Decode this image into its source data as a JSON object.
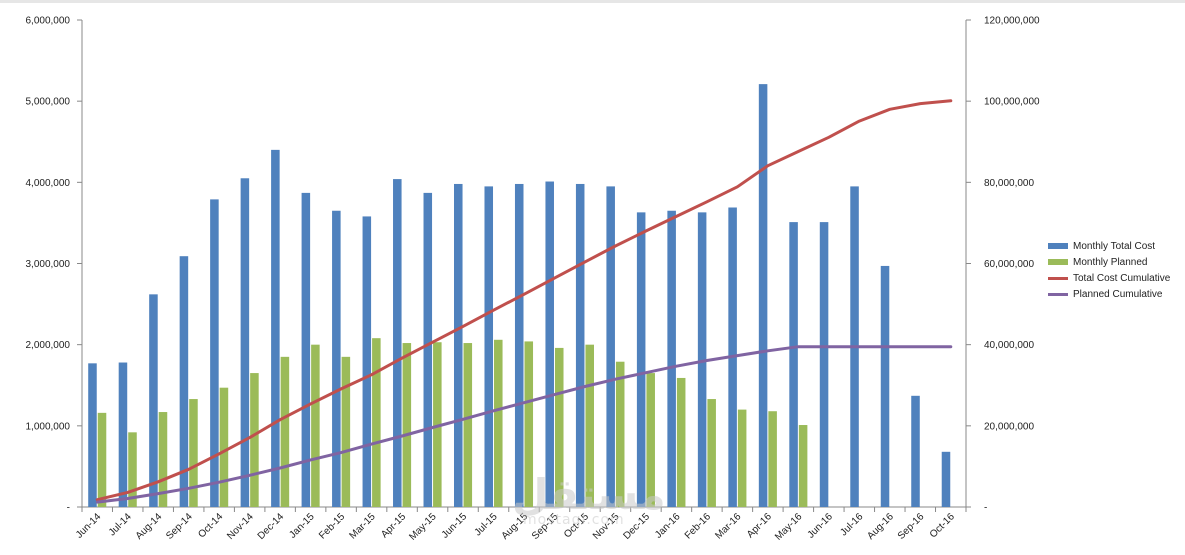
{
  "chart_data": {
    "type": "bar",
    "categories": [
      "Jun-14",
      "Jul-14",
      "Aug-14",
      "Sep-14",
      "Oct-14",
      "Nov-14",
      "Dec-14",
      "Jan-15",
      "Feb-15",
      "Mar-15",
      "Apr-15",
      "May-15",
      "Jun-15",
      "Jul-15",
      "Aug-15",
      "Sep-15",
      "Oct-15",
      "Nov-15",
      "Dec-15",
      "Jan-16",
      "Feb-16",
      "Mar-16",
      "Apr-16",
      "May-16",
      "Jun-16",
      "Jul-16",
      "Aug-16",
      "Sep-16",
      "Oct-16"
    ],
    "series": [
      {
        "name": "Monthly Total Cost",
        "type": "bar",
        "axis": "left",
        "color": "#4F81BD",
        "values": [
          1770000,
          1780000,
          2620000,
          3090000,
          3790000,
          4050000,
          4400000,
          3870000,
          3650000,
          3580000,
          4040000,
          3870000,
          3980000,
          3950000,
          3980000,
          4010000,
          3980000,
          3950000,
          3630000,
          3650000,
          3630000,
          3690000,
          5210000,
          3510000,
          3510000,
          3950000,
          2970000,
          1370000,
          680000
        ]
      },
      {
        "name": "Monthly Planned",
        "type": "bar",
        "axis": "left",
        "color": "#9BBB59",
        "values": [
          1160000,
          920000,
          1170000,
          1330000,
          1470000,
          1650000,
          1850000,
          2000000,
          1850000,
          2080000,
          2020000,
          2030000,
          2020000,
          2060000,
          2040000,
          1960000,
          2000000,
          1790000,
          1650000,
          1590000,
          1330000,
          1200000,
          1180000,
          1010000,
          null,
          null,
          null,
          null,
          null
        ]
      },
      {
        "name": "Total Cost Cumulative",
        "type": "line",
        "axis": "right",
        "color": "#C0504D",
        "values": [
          1800000,
          3600000,
          6200000,
          9300000,
          13100000,
          17100000,
          21500000,
          25400000,
          29100000,
          32600000,
          36700000,
          40600000,
          44500000,
          48500000,
          52400000,
          56400000,
          60400000,
          64300000,
          68000000,
          71600000,
          75200000,
          78900000,
          84100000,
          87600000,
          91100000,
          95100000,
          98000000,
          99400000,
          100100000
        ]
      },
      {
        "name": "Planned Cumulative",
        "type": "line",
        "axis": "right",
        "color": "#8064A2",
        "values": [
          1200000,
          2100000,
          3300000,
          4600000,
          6100000,
          7800000,
          9600000,
          11600000,
          13400000,
          15500000,
          17500000,
          19600000,
          21600000,
          23700000,
          25700000,
          27700000,
          29700000,
          31500000,
          33100000,
          34700000,
          36100000,
          37300000,
          38500000,
          39500000,
          39500000,
          39500000,
          39500000,
          39500000,
          39500000
        ]
      }
    ],
    "y_left": {
      "min": 0,
      "max": 6000000,
      "ticks": [
        0,
        1000000,
        2000000,
        3000000,
        4000000,
        5000000,
        6000000
      ],
      "tick_labels": [
        "-",
        "1,000,000",
        "2,000,000",
        "3,000,000",
        "4,000,000",
        "5,000,000",
        "6,000,000"
      ]
    },
    "y_right": {
      "min": 0,
      "max": 120000000,
      "ticks": [
        0,
        20000000,
        40000000,
        60000000,
        80000000,
        100000000,
        120000000
      ],
      "tick_labels": [
        "-",
        "20,000,000",
        "40,000,000",
        "60,000,000",
        "80,000,000",
        "100,000,000",
        "120,000,000"
      ]
    },
    "grid": false,
    "legend_position": "right"
  },
  "legend": {
    "items": [
      {
        "label": "Monthly Total Cost",
        "color": "#4F81BD",
        "kind": "bar"
      },
      {
        "label": "Monthly Planned",
        "color": "#9BBB59",
        "kind": "bar"
      },
      {
        "label": "Total Cost Cumulative",
        "color": "#C0504D",
        "kind": "line"
      },
      {
        "label": "Planned Cumulative",
        "color": "#8064A2",
        "kind": "line"
      }
    ]
  },
  "watermark": {
    "main": "مستقل",
    "sub": "mostaql.com"
  }
}
